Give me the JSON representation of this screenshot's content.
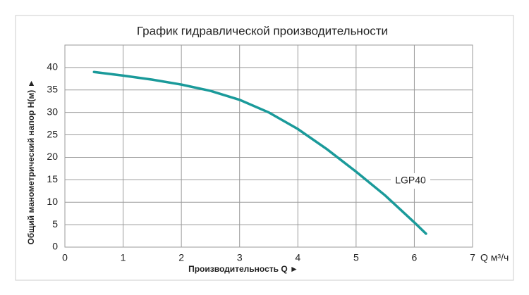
{
  "chart_data": {
    "type": "line",
    "title": "График гидравлической производительности",
    "x_label": "Производительность Q ►",
    "x_unit_label": "Q м³/ч",
    "y_label": "Общий манометрический напор H(м) ►",
    "x": [
      0.5,
      1,
      1.5,
      2,
      2.5,
      3,
      3.5,
      4,
      4.5,
      5,
      5.5,
      6,
      6.2
    ],
    "series": [
      {
        "name": "LGP40",
        "color": "#1a9a9a",
        "values": [
          39,
          38.2,
          37.3,
          36.2,
          34.8,
          32.8,
          30,
          26.3,
          21.8,
          16.8,
          11.5,
          5.5,
          3
        ]
      }
    ],
    "xlim": [
      0,
      7
    ],
    "xticks": [
      0,
      1,
      2,
      3,
      4,
      5,
      6,
      7
    ],
    "ylim": [
      0,
      45
    ],
    "yticks": [
      0,
      5,
      10,
      15,
      20,
      25,
      30,
      35,
      40
    ],
    "grid": true
  }
}
